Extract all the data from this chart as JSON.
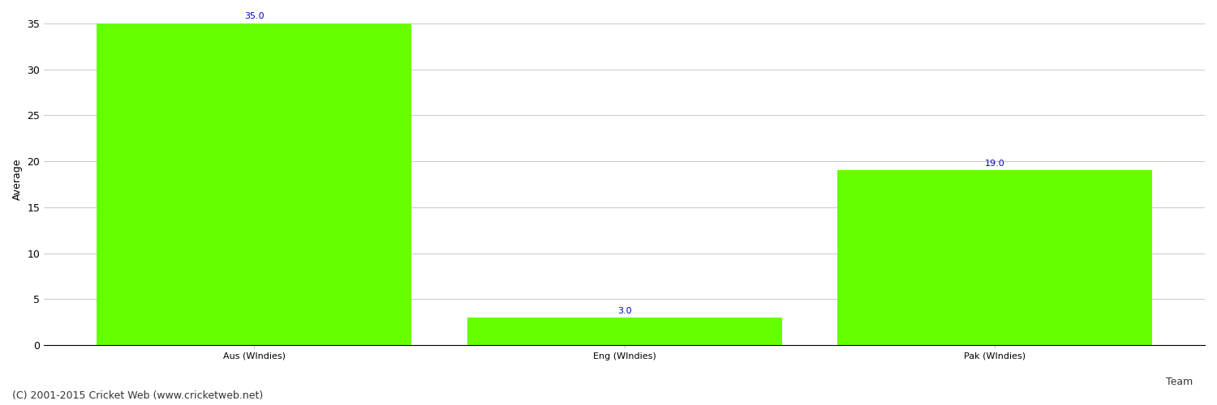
{
  "categories": [
    "Aus (WIndies)",
    "Eng (WIndies)",
    "Pak (WIndies)"
  ],
  "values": [
    35.0,
    3.0,
    19.0
  ],
  "bar_color": "#66ff00",
  "bar_edge_color": "#66ff00",
  "value_color": "#0000cc",
  "value_fontsize": 8,
  "xlabel": "Team",
  "ylabel": "Average",
  "ylim": [
    0,
    36
  ],
  "yticks": [
    0,
    5,
    10,
    15,
    20,
    25,
    30,
    35
  ],
  "grid_color": "#cccccc",
  "background_color": "#ffffff",
  "footer_text": "(C) 2001-2015 Cricket Web (www.cricketweb.net)",
  "footer_fontsize": 9,
  "footer_color": "#333333",
  "ylabel_fontsize": 9,
  "xtick_fontsize": 8,
  "ytick_fontsize": 9
}
